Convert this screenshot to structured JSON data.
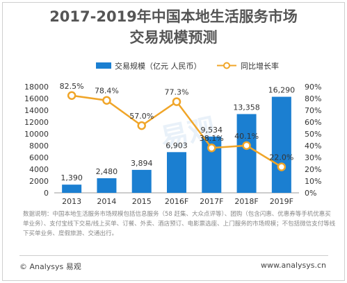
{
  "title_line1": "2017-2019年中国本地生活服务市场",
  "title_line2": "交易规模预测",
  "chart_data": {
    "type": "bar",
    "categories": [
      "2013",
      "2014",
      "2015",
      "2016F",
      "2017F",
      "2018F",
      "2019F"
    ],
    "series": [
      {
        "name": "交易规模（亿元 人民币）",
        "type": "bar",
        "values": [
          1390,
          2480,
          3894,
          6903,
          9534,
          13358,
          16290
        ],
        "labels": [
          "1,390",
          "2,480",
          "3,894",
          "6,903",
          "9,534",
          "13,358",
          "16,290"
        ],
        "color": "#1b7fd1"
      },
      {
        "name": "同比增长率",
        "type": "line",
        "values": [
          82.5,
          78.4,
          57.0,
          77.3,
          38.1,
          40.1,
          22.0
        ],
        "labels": [
          "82.5%",
          "78.4%",
          "57.0%",
          "77.3%",
          "38.1%",
          "40.1%",
          "22.0%"
        ],
        "color": "#f0a528"
      }
    ],
    "y_left": {
      "min": 0,
      "max": 18000,
      "ticks": [
        "0",
        "2000",
        "4000",
        "6000",
        "8000",
        "10000",
        "12000",
        "14000",
        "16000",
        "18000"
      ]
    },
    "y_right": {
      "min": 0,
      "max": 90,
      "ticks": [
        "0%",
        "10%",
        "20%",
        "30%",
        "40%",
        "50%",
        "60%",
        "70%",
        "80%",
        "90%"
      ]
    },
    "legend": "top",
    "grid": false
  },
  "note": "数据说明：中国本地生活服务市场规模包括信息服务（58 赶集、大众点评等）、团购（包含闪惠、优惠券等手机优惠买单业务）、支付宝线下交易/线上买单、订餐、外卖、酒店预订、电影票选座、上门服务的市场规模；不包括微信支付等线下买单业务、度假旅游、交通出行。",
  "footer_left": "© Analysys 易观",
  "footer_right": "www.analysys.cn",
  "watermark": "易观"
}
